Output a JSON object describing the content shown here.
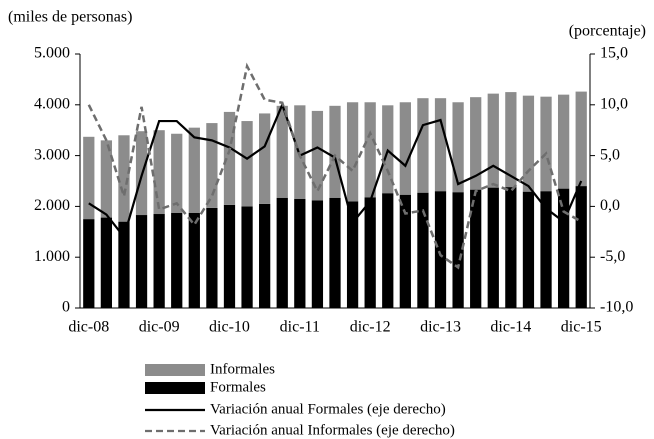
{
  "chart_data": {
    "type": "bar_line",
    "left_axis_label": "(miles de personas)",
    "right_axis_label": "(porcentaje)",
    "categories": [
      "dic-08",
      null,
      null,
      null,
      "dic-09",
      null,
      null,
      null,
      "dic-10",
      null,
      null,
      null,
      "dic-11",
      null,
      null,
      null,
      "dic-12",
      null,
      null,
      null,
      "dic-13",
      null,
      null,
      null,
      "dic-14",
      null,
      null,
      null,
      "dic-15"
    ],
    "ylim": [
      0,
      5000
    ],
    "yticks": [
      {
        "value": 0,
        "label": "0"
      },
      {
        "value": 1000,
        "label": "1.000"
      },
      {
        "value": 2000,
        "label": "2.000"
      },
      {
        "value": 3000,
        "label": "3.000"
      },
      {
        "value": 4000,
        "label": "4.000"
      },
      {
        "value": 5000,
        "label": "5.000"
      }
    ],
    "y2lim": [
      -10,
      15
    ],
    "y2ticks": [
      {
        "value": -10,
        "label": "-10,0"
      },
      {
        "value": -5,
        "label": "-5,0"
      },
      {
        "value": 0,
        "label": "0,0"
      },
      {
        "value": 5,
        "label": "5,0"
      },
      {
        "value": 10,
        "label": "10,0"
      },
      {
        "value": 15,
        "label": "15,0"
      }
    ],
    "series": [
      {
        "name": "Informales",
        "kind": "bar",
        "color": "#8c8c8c",
        "values": [
          1620,
          1520,
          1700,
          1650,
          1650,
          1560,
          1680,
          1670,
          1830,
          1680,
          1780,
          1810,
          1840,
          1760,
          1810,
          1950,
          1870,
          1730,
          1820,
          1860,
          1830,
          1770,
          1820,
          1850,
          1870,
          1890,
          1860,
          1850,
          1860
        ]
      },
      {
        "name": "Formales",
        "kind": "bar",
        "color": "#000000",
        "values": [
          1750,
          1780,
          1700,
          1830,
          1850,
          1870,
          1870,
          1970,
          2030,
          2000,
          2050,
          2170,
          2150,
          2120,
          2170,
          2100,
          2180,
          2260,
          2230,
          2270,
          2300,
          2280,
          2330,
          2370,
          2380,
          2290,
          2300,
          2350,
          2400
        ]
      },
      {
        "name": "Variación anual Formales (eje derecho)",
        "kind": "line",
        "axis": "y2",
        "color": "#000000",
        "values": [
          0.3,
          -0.8,
          -3.0,
          3.0,
          8.4,
          8.4,
          6.8,
          6.5,
          5.8,
          4.7,
          5.9,
          10.0,
          5.0,
          5.8,
          4.8,
          -1.6,
          0.5,
          5.5,
          4.0,
          8.0,
          8.5,
          2.2,
          3.0,
          4.0,
          3.0,
          2.0,
          -0.2,
          -1.5,
          2.5
        ]
      },
      {
        "name": "Variación anual Informales (eje derecho)",
        "kind": "dashed-line",
        "axis": "y2",
        "color": "#6e6e6e",
        "values": [
          10.0,
          6.5,
          1.0,
          9.8,
          -0.3,
          0.3,
          -1.8,
          1.0,
          5.5,
          13.8,
          10.5,
          10.2,
          5.0,
          1.5,
          5.0,
          3.5,
          7.2,
          3.5,
          -0.7,
          -0.4,
          -4.8,
          -6.0,
          1.5,
          2.2,
          1.5,
          3.5,
          5.2,
          -0.5,
          -1.5
        ]
      }
    ]
  }
}
